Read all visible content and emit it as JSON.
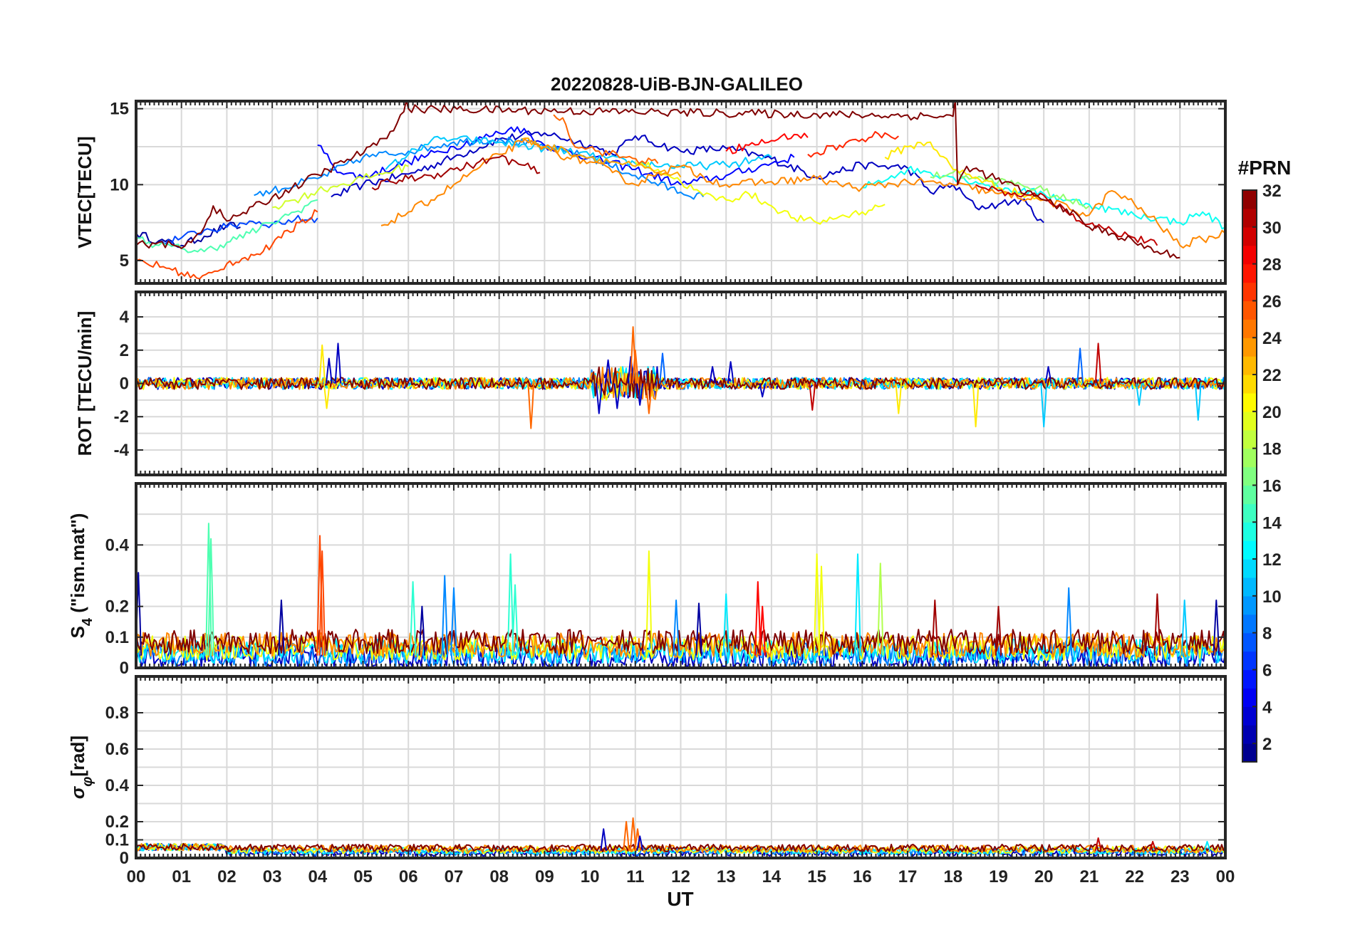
{
  "figure": {
    "title": "20220828-UiB-BJN-GALILEO",
    "x_label": "UT",
    "x_tick_labels": [
      "00",
      "01",
      "02",
      "03",
      "04",
      "05",
      "06",
      "07",
      "08",
      "09",
      "10",
      "11",
      "12",
      "13",
      "14",
      "15",
      "16",
      "17",
      "18",
      "19",
      "20",
      "21",
      "22",
      "23",
      "00"
    ],
    "colorbar": {
      "title": "#PRN",
      "range": [
        1,
        32
      ],
      "tick_labels": [
        "2",
        "4",
        "6",
        "8",
        "10",
        "12",
        "14",
        "16",
        "18",
        "20",
        "22",
        "24",
        "26",
        "28",
        "30",
        "32"
      ],
      "colormap": "jet"
    }
  },
  "chart_data": [
    {
      "type": "line",
      "panel": "vtec",
      "ylabel": "VTEC[TECU]",
      "ylim": [
        3.5,
        15.5
      ],
      "yticks": [
        5,
        10,
        15
      ],
      "xlim": [
        0,
        24
      ],
      "grid": true,
      "series": [
        {
          "prn": 2,
          "x": [
            0.0,
            0.5,
            1.0,
            1.5,
            2.0,
            2.3
          ],
          "y": [
            6.8,
            6.3,
            6.0,
            6.6,
            7.3,
            7.2
          ]
        },
        {
          "prn": 3,
          "x": [
            4.3,
            5.0,
            6.0,
            7.0,
            8.0,
            9.0,
            10.0,
            10.5,
            11.0,
            12.0,
            13.0,
            14.0,
            15.0,
            16.0,
            17.0,
            17.5,
            18.0,
            18.5,
            19.0,
            19.5,
            20.0
          ],
          "y": [
            9.2,
            10.0,
            10.7,
            11.8,
            13.0,
            13.4,
            12.6,
            12.0,
            13.2,
            12.2,
            12.4,
            11.7,
            10.5,
            11.3,
            11.1,
            9.5,
            10.0,
            8.5,
            8.7,
            9.0,
            7.5
          ]
        },
        {
          "prn": 5,
          "x": [
            4.0,
            4.5,
            5.0,
            6.0,
            7.0,
            8.0,
            8.4,
            9.0,
            10.0,
            11.0,
            12.0,
            13.0,
            14.0,
            14.5
          ],
          "y": [
            12.6,
            10.8,
            10.5,
            11.5,
            12.5,
            13.4,
            13.8,
            12.6,
            11.8,
            11.0,
            10.0,
            10.6,
            11.4,
            11.8
          ]
        },
        {
          "prn": 7,
          "x": [
            0.5,
            1.0,
            1.5,
            2.0,
            2.5,
            3.0,
            3.5,
            4.0
          ],
          "y": [
            6.2,
            6.5,
            7.0,
            7.2,
            7.6,
            7.4,
            7.7,
            7.8
          ]
        },
        {
          "prn": 9,
          "x": [
            2.6,
            3.0,
            4.0,
            5.0,
            6.0,
            7.0,
            8.0,
            9.0,
            10.0,
            11.0,
            12.0,
            12.5
          ],
          "y": [
            9.3,
            9.6,
            10.4,
            11.8,
            12.2,
            12.8,
            13.0,
            12.5,
            11.8,
            10.6,
            9.5,
            9.2
          ]
        },
        {
          "prn": 11,
          "x": [
            5.5,
            6.0,
            6.5,
            7.0,
            8.0,
            9.0,
            10.0,
            11.0,
            12.0,
            13.0,
            14.0
          ],
          "y": [
            11.0,
            12.0,
            12.9,
            13.0,
            12.8,
            12.4,
            11.9,
            11.4,
            11.2,
            11.3,
            11.8
          ]
        },
        {
          "prn": 13,
          "x": [
            16.0,
            17.0,
            17.5,
            18.0,
            18.5,
            19.0,
            19.5,
            20.0,
            20.5,
            21.0,
            22.0,
            22.5,
            23.0,
            23.5,
            24.0
          ],
          "y": [
            9.8,
            11.0,
            10.8,
            10.5,
            10.2,
            9.8,
            9.6,
            9.4,
            9.0,
            8.7,
            8.0,
            7.8,
            7.5,
            8.2,
            7.2
          ]
        },
        {
          "prn": 15,
          "x": [
            0.0,
            0.5,
            1.0,
            1.5,
            2.0,
            2.5,
            3.0,
            3.5,
            4.0
          ],
          "y": [
            6.5,
            6.0,
            5.8,
            5.6,
            6.2,
            6.8,
            7.5,
            8.2,
            9.0
          ]
        },
        {
          "prn": 17,
          "x": [
            17.5,
            18.0,
            18.5,
            19.0,
            19.5,
            20.0,
            20.5,
            21.0
          ],
          "y": [
            10.5,
            10.8,
            10.4,
            10.2,
            10.0,
            9.6,
            9.0,
            8.6
          ]
        },
        {
          "prn": 19,
          "x": [
            3.0,
            3.5,
            4.0,
            4.5,
            5.0,
            5.5,
            6.0
          ],
          "y": [
            8.5,
            9.0,
            9.6,
            10.0,
            10.4,
            10.8,
            11.2
          ]
        },
        {
          "prn": 20,
          "x": [
            11.0,
            11.5,
            12.0,
            12.5,
            13.0,
            13.5,
            14.0,
            14.5,
            15.0,
            15.5,
            16.0,
            16.5
          ],
          "y": [
            11.5,
            11.0,
            10.2,
            9.3,
            9.0,
            9.4,
            8.6,
            7.8,
            7.5,
            7.9,
            8.2,
            8.7
          ]
        },
        {
          "prn": 21,
          "x": [
            16.5,
            17.0,
            17.5,
            18.0,
            18.5,
            19.0,
            19.5,
            20.0
          ],
          "y": [
            11.8,
            12.5,
            12.8,
            11.0,
            10.5,
            9.8,
            9.4,
            9.0
          ]
        },
        {
          "prn": 23,
          "x": [
            8.5,
            9.0,
            9.5,
            10.0,
            10.5,
            11.0,
            11.5,
            12.0
          ],
          "y": [
            13.0,
            12.5,
            12.2,
            11.8,
            11.5,
            11.2,
            10.8,
            10.5
          ]
        },
        {
          "prn": 24,
          "x": [
            5.4,
            6.0,
            6.5,
            7.0,
            7.5,
            8.0,
            8.5,
            9.0,
            9.5,
            10.0,
            10.5,
            11.0,
            11.5,
            12.0,
            12.5,
            13.0,
            14.0,
            15.0,
            15.5,
            16.0,
            17.0,
            18.0,
            19.0,
            20.0,
            21.0,
            21.5,
            22.0,
            22.5,
            23.0,
            23.5,
            24.0
          ],
          "y": [
            7.3,
            8.2,
            9.0,
            10.0,
            11.0,
            12.0,
            12.8,
            12.5,
            11.8,
            11.5,
            10.8,
            10.0,
            10.8,
            11.2,
            10.5,
            10.0,
            10.2,
            10.4,
            10.0,
            9.8,
            10.2,
            10.0,
            9.4,
            9.0,
            8.0,
            9.6,
            8.7,
            7.5,
            6.0,
            6.4,
            6.8
          ]
        },
        {
          "prn": 25,
          "x": [
            9.2,
            9.4,
            9.6,
            10.2,
            10.8,
            11.5
          ],
          "y": [
            14.6,
            14.4,
            12.8,
            12.2,
            11.8,
            11.4
          ]
        },
        {
          "prn": 26,
          "x": [
            0.0,
            0.6,
            1.0,
            1.4,
            1.8,
            2.0,
            2.4,
            2.8,
            3.2,
            3.6,
            4.0
          ],
          "y": [
            5.0,
            4.6,
            4.2,
            3.8,
            4.3,
            4.8,
            5.2,
            5.6,
            6.5,
            7.5,
            8.2
          ]
        },
        {
          "prn": 27,
          "x": [
            14.8,
            15.5,
            16.0,
            16.5,
            16.8
          ],
          "y": [
            12.0,
            12.6,
            13.0,
            13.4,
            13.2
          ]
        },
        {
          "prn": 28,
          "x": [
            13.0,
            13.5,
            14.0,
            14.5,
            14.8
          ],
          "y": [
            12.2,
            12.6,
            12.9,
            13.3,
            13.1
          ]
        },
        {
          "prn": 30,
          "x": [
            18.5,
            19.0,
            19.5,
            20.0,
            20.5,
            21.0,
            21.5,
            22.0,
            22.5
          ],
          "y": [
            10.0,
            9.6,
            9.2,
            9.3,
            8.2,
            7.4,
            7.0,
            6.5,
            6.0
          ]
        },
        {
          "prn": 31,
          "x": [
            5.2,
            5.6,
            6.0,
            6.5,
            7.0,
            7.5,
            8.0,
            8.5,
            8.9
          ],
          "y": [
            9.8,
            10.2,
            10.4,
            10.6,
            11.0,
            11.4,
            11.8,
            11.3,
            10.8
          ]
        },
        {
          "prn": 32,
          "x": [
            0.0,
            0.5,
            1.0,
            1.5,
            1.7,
            2.0,
            5.3,
            5.6,
            5.9,
            5.95,
            6.0,
            18.0,
            18.05,
            18.1,
            18.3,
            20.0,
            20.5,
            21.0,
            21.5,
            22.0,
            22.5,
            23.0
          ],
          "y": [
            6.0,
            6.2,
            5.8,
            7.2,
            8.6,
            7.6,
            12.6,
            13.5,
            14.8,
            15.5,
            15.0,
            14.5,
            15.5,
            10.0,
            11.2,
            9.0,
            8.4,
            7.2,
            6.8,
            6.2,
            5.6,
            5.2
          ]
        }
      ]
    },
    {
      "type": "line",
      "panel": "rot",
      "ylabel": "ROT [TECU/min]",
      "ylim": [
        -5.5,
        5.5
      ],
      "yticks": [
        -4,
        -2,
        0,
        2,
        4
      ],
      "xlim": [
        0,
        24
      ],
      "grid": true,
      "spikes": [
        {
          "prn": 3,
          "x": [
            4.25,
            4.45,
            10.2,
            10.4,
            10.6,
            10.9,
            11.1,
            12.7,
            13.1,
            13.8,
            20.1
          ],
          "y": [
            1.5,
            2.4,
            -1.8,
            1.4,
            -1.5,
            1.6,
            -1.3,
            1.0,
            1.3,
            -0.8,
            1.0
          ]
        },
        {
          "prn": 21,
          "x": [
            4.1,
            4.2,
            16.8,
            18.5
          ],
          "y": [
            2.3,
            -1.5,
            -1.8,
            -2.6
          ]
        },
        {
          "prn": 25,
          "x": [
            8.7,
            10.95,
            11.0,
            11.3
          ],
          "y": [
            -2.7,
            3.4,
            2.0,
            -1.8
          ]
        },
        {
          "prn": 11,
          "x": [
            20.0,
            22.1,
            23.4
          ],
          "y": [
            -2.6,
            -1.3,
            -2.2
          ]
        },
        {
          "prn": 30,
          "x": [
            14.9,
            21.2
          ],
          "y": [
            -1.6,
            2.4
          ]
        },
        {
          "prn": 8,
          "x": [
            11.6,
            20.8
          ],
          "y": [
            1.8,
            2.1
          ]
        }
      ]
    },
    {
      "type": "line",
      "panel": "s4",
      "ylabel": "S4 (\"ism.mat\")",
      "ylabel_main": "S",
      "ylabel_sub": "4",
      "ylabel_rest": " (\"ism.mat\")",
      "ylim": [
        0,
        0.6
      ],
      "yticks": [
        0,
        0.1,
        0.2,
        0.4
      ],
      "xlim": [
        0,
        24
      ],
      "grid": true,
      "spikes": [
        {
          "prn": 2,
          "x": [
            0.05,
            3.2,
            6.3,
            12.4,
            23.8
          ],
          "y": [
            0.31,
            0.22,
            0.2,
            0.21,
            0.22
          ]
        },
        {
          "prn": 15,
          "x": [
            1.6,
            1.65
          ],
          "y": [
            0.47,
            0.42
          ]
        },
        {
          "prn": 26,
          "x": [
            4.05,
            4.1
          ],
          "y": [
            0.43,
            0.38
          ]
        },
        {
          "prn": 9,
          "x": [
            6.8,
            7.0,
            11.9,
            20.55
          ],
          "y": [
            0.3,
            0.26,
            0.22,
            0.26
          ]
        },
        {
          "prn": 14,
          "x": [
            6.1,
            8.25,
            8.35
          ],
          "y": [
            0.28,
            0.37,
            0.27
          ]
        },
        {
          "prn": 20,
          "x": [
            11.3,
            15.0,
            15.1
          ],
          "y": [
            0.38,
            0.37,
            0.33
          ]
        },
        {
          "prn": 12,
          "x": [
            13.0,
            15.9
          ],
          "y": [
            0.24,
            0.37
          ]
        },
        {
          "prn": 28,
          "x": [
            13.7,
            13.8
          ],
          "y": [
            0.28,
            0.2
          ]
        },
        {
          "prn": 31,
          "x": [
            17.6,
            19.0,
            22.5
          ],
          "y": [
            0.22,
            0.2,
            0.24
          ]
        },
        {
          "prn": 18,
          "x": [
            16.4
          ],
          "y": [
            0.34
          ]
        },
        {
          "prn": 11,
          "x": [
            23.1
          ],
          "y": [
            0.22
          ]
        }
      ]
    },
    {
      "type": "line",
      "panel": "sigma_phi",
      "ylabel": "σφ[rad]",
      "ylabel_main": "σ",
      "ylabel_sub": "φ",
      "ylabel_rest": "[rad]",
      "ylim": [
        0,
        1.0
      ],
      "yticks": [
        0,
        0.1,
        0.2,
        0.4,
        0.6,
        0.8
      ],
      "xlim": [
        0,
        24
      ],
      "grid": true,
      "spikes": [
        {
          "prn": 25,
          "x": [
            10.8,
            10.95,
            11.05
          ],
          "y": [
            0.2,
            0.22,
            0.16
          ]
        },
        {
          "prn": 3,
          "x": [
            10.3,
            11.1
          ],
          "y": [
            0.16,
            0.12
          ]
        },
        {
          "prn": 30,
          "x": [
            21.2,
            22.4
          ],
          "y": [
            0.11,
            0.09
          ]
        },
        {
          "prn": 12,
          "x": [
            23.6
          ],
          "y": [
            0.09
          ]
        }
      ]
    }
  ]
}
